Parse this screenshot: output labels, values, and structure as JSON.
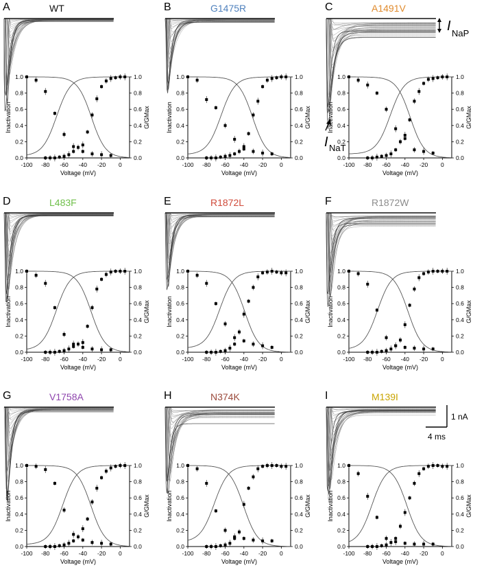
{
  "figure": {
    "scale_bar": {
      "current": "1 nA",
      "time": "4 ms"
    },
    "annotations": {
      "inap_symbol": "I",
      "inap_sub": "NaP",
      "inat_symbol": "I",
      "inat_sub": "NaT"
    }
  },
  "chart_data": [
    {
      "type": "line",
      "panel_letter": "A",
      "variant": "WT",
      "variant_color": "#111111",
      "xlabel": "Voltage (mV)",
      "ylabel_left": "Inactivation",
      "ylabel_right": "G/GMax",
      "xlim": [
        -100,
        10
      ],
      "ylim": [
        0,
        1
      ],
      "xticks": [
        "-100",
        "-80",
        "-60",
        "-40",
        "-20",
        "0"
      ],
      "yticks": [
        "0.0",
        "0.2",
        "0.4",
        "0.6",
        "0.8",
        "1.0"
      ],
      "inactivation": {
        "x": [
          -100,
          -90,
          -80,
          -70,
          -60,
          -50,
          -40,
          -30,
          -20,
          -10
        ],
        "y": [
          1.0,
          0.96,
          0.82,
          0.55,
          0.29,
          0.14,
          0.08,
          0.05,
          0.04,
          0.03
        ]
      },
      "activation": {
        "x": [
          -80,
          -75,
          -70,
          -65,
          -60,
          -55,
          -50,
          -45,
          -40,
          -35,
          -30,
          -25,
          -20,
          -15,
          -10,
          -5,
          0,
          5
        ],
        "y": [
          0.0,
          0.0,
          0.0,
          0.01,
          0.02,
          0.04,
          0.08,
          0.13,
          0.16,
          0.32,
          0.53,
          0.73,
          0.88,
          0.95,
          0.98,
          0.99,
          1.0,
          1.0
        ]
      },
      "traces": {
        "count": 28,
        "peak": 1.0,
        "persistent": 0.02
      }
    },
    {
      "type": "line",
      "panel_letter": "B",
      "variant": "G1475R",
      "variant_color": "#4f81bd",
      "xlabel": "Voltage (mV)",
      "ylabel_left": "Inactivation",
      "ylabel_right": "G/GMax",
      "xlim": [
        -100,
        10
      ],
      "ylim": [
        0,
        1
      ],
      "xticks": [
        "-100",
        "-80",
        "-60",
        "-40",
        "-20",
        "0"
      ],
      "yticks": [
        "0.0",
        "0.2",
        "0.4",
        "0.6",
        "0.8",
        "1.0"
      ],
      "inactivation": {
        "x": [
          -100,
          -90,
          -80,
          -70,
          -60,
          -50,
          -40,
          -30,
          -20,
          -10
        ],
        "y": [
          1.0,
          0.96,
          0.72,
          0.62,
          0.4,
          0.23,
          0.11,
          0.08,
          0.06,
          0.05
        ]
      },
      "activation": {
        "x": [
          -80,
          -75,
          -70,
          -65,
          -60,
          -55,
          -50,
          -45,
          -40,
          -35,
          -30,
          -25,
          -20,
          -15,
          -10,
          -5,
          0,
          5
        ],
        "y": [
          0.0,
          0.0,
          0.0,
          0.01,
          0.02,
          0.03,
          0.05,
          0.08,
          0.14,
          0.3,
          0.53,
          0.7,
          0.88,
          0.96,
          0.98,
          0.99,
          1.0,
          1.0
        ]
      },
      "traces": {
        "count": 28,
        "peak": 0.8,
        "persistent": 0.03
      }
    },
    {
      "type": "line",
      "panel_letter": "C",
      "variant": "A1491V",
      "variant_color": "#e08a2c",
      "xlabel": "Voltage (mV)",
      "ylabel_left": "Inactivation",
      "ylabel_right": "G/GMax",
      "xlim": [
        -100,
        10
      ],
      "ylim": [
        0,
        1
      ],
      "xticks": [
        "-100",
        "-80",
        "-60",
        "-40",
        "-20",
        "0"
      ],
      "yticks": [
        "0.0",
        "0.2",
        "0.4",
        "0.6",
        "0.8",
        "1.0"
      ],
      "inactivation": {
        "x": [
          -100,
          -90,
          -80,
          -70,
          -60,
          -50,
          -40,
          -30,
          -20,
          -10
        ],
        "y": [
          1.0,
          0.96,
          0.9,
          0.8,
          0.6,
          0.36,
          0.24,
          0.1,
          0.08,
          0.06
        ]
      },
      "activation": {
        "x": [
          -80,
          -75,
          -70,
          -65,
          -60,
          -55,
          -50,
          -45,
          -40,
          -35,
          -30,
          -25,
          -20,
          -15,
          -10,
          -5,
          0,
          5
        ],
        "y": [
          0.0,
          0.0,
          0.01,
          0.02,
          0.03,
          0.05,
          0.1,
          0.2,
          0.28,
          0.47,
          0.7,
          0.82,
          0.92,
          0.97,
          0.98,
          0.99,
          1.0,
          1.0
        ]
      },
      "traces": {
        "count": 30,
        "peak": 1.0,
        "persistent": 0.15
      }
    },
    {
      "type": "line",
      "panel_letter": "D",
      "variant": "L483F",
      "variant_color": "#6fbf4a",
      "xlabel": "Voltage (mV)",
      "ylabel_left": "Inactivation",
      "ylabel_right": "G/GMax",
      "xlim": [
        -100,
        10
      ],
      "ylim": [
        0,
        1
      ],
      "xticks": [
        "-100",
        "-80",
        "-60",
        "-40",
        "-20",
        "0"
      ],
      "yticks": [
        "0.0",
        "0.2",
        "0.4",
        "0.6",
        "0.8",
        "1.0"
      ],
      "inactivation": {
        "x": [
          -100,
          -90,
          -80,
          -70,
          -60,
          -50,
          -40,
          -30,
          -20,
          -10
        ],
        "y": [
          1.0,
          0.95,
          0.85,
          0.55,
          0.22,
          0.1,
          0.06,
          0.04,
          0.03,
          0.03
        ]
      },
      "activation": {
        "x": [
          -80,
          -75,
          -70,
          -65,
          -60,
          -55,
          -50,
          -45,
          -40,
          -35,
          -30,
          -25,
          -20,
          -15,
          -10,
          -5,
          0,
          5
        ],
        "y": [
          0.0,
          0.0,
          0.0,
          0.01,
          0.02,
          0.04,
          0.07,
          0.1,
          0.12,
          0.32,
          0.55,
          0.78,
          0.9,
          0.96,
          0.99,
          1.0,
          1.0,
          1.0
        ]
      },
      "traces": {
        "count": 28,
        "peak": 1.0,
        "persistent": 0.02
      }
    },
    {
      "type": "line",
      "panel_letter": "E",
      "variant": "R1872L",
      "variant_color": "#d04a3a",
      "xlabel": "Voltage (mV)",
      "ylabel_left": "Inactivation",
      "ylabel_right": "G/GMax",
      "xlim": [
        -100,
        10
      ],
      "ylim": [
        0,
        1
      ],
      "xticks": [
        "-100",
        "-80",
        "-60",
        "-40",
        "-20",
        "0"
      ],
      "yticks": [
        "0.0",
        "0.2",
        "0.4",
        "0.6",
        "0.8",
        "1.0"
      ],
      "inactivation": {
        "x": [
          -100,
          -90,
          -80,
          -70,
          -60,
          -50,
          -40,
          -30,
          -20,
          -10
        ],
        "y": [
          1.0,
          0.95,
          0.85,
          0.6,
          0.35,
          0.18,
          0.14,
          0.1,
          0.08,
          0.06
        ]
      },
      "activation": {
        "x": [
          -80,
          -75,
          -70,
          -65,
          -60,
          -55,
          -50,
          -45,
          -40,
          -35,
          -30,
          -25,
          -20,
          -15,
          -10,
          -5,
          0,
          5
        ],
        "y": [
          0.0,
          0.0,
          0.0,
          0.01,
          0.02,
          0.05,
          0.1,
          0.25,
          0.47,
          0.63,
          0.8,
          0.93,
          0.98,
          0.99,
          1.0,
          0.99,
          0.98,
          0.98
        ]
      },
      "traces": {
        "count": 28,
        "peak": 0.85,
        "persistent": 0.03
      }
    },
    {
      "type": "line",
      "panel_letter": "F",
      "variant": "R1872W",
      "variant_color": "#8c8c8c",
      "xlabel": "Voltage (mV)",
      "ylabel_left": "Inactivation",
      "ylabel_right": "G/GMax",
      "xlim": [
        -100,
        10
      ],
      "ylim": [
        0,
        1
      ],
      "xticks": [
        "-100",
        "-80",
        "-60",
        "-40",
        "-20",
        "0"
      ],
      "yticks": [
        "0.0",
        "0.2",
        "0.4",
        "0.6",
        "0.8",
        "1.0"
      ],
      "inactivation": {
        "x": [
          -100,
          -90,
          -80,
          -70,
          -60,
          -50,
          -40,
          -30,
          -20,
          -10
        ],
        "y": [
          1.0,
          0.97,
          0.84,
          0.52,
          0.18,
          0.08,
          0.06,
          0.05,
          0.04,
          0.04
        ]
      },
      "activation": {
        "x": [
          -80,
          -75,
          -70,
          -65,
          -60,
          -55,
          -50,
          -45,
          -40,
          -35,
          -30,
          -25,
          -20,
          -15,
          -10,
          -5,
          0,
          5
        ],
        "y": [
          0.0,
          0.0,
          0.0,
          0.01,
          0.02,
          0.04,
          0.08,
          0.15,
          0.34,
          0.58,
          0.78,
          0.92,
          0.97,
          0.99,
          1.0,
          1.0,
          1.0,
          1.0
        ]
      },
      "traces": {
        "count": 30,
        "peak": 1.0,
        "persistent": 0.1
      }
    },
    {
      "type": "line",
      "panel_letter": "G",
      "variant": "V1758A",
      "variant_color": "#8e44ad",
      "xlabel": "Voltage (mV)",
      "ylabel_left": "Inactivation",
      "ylabel_right": "G/GMax",
      "xlim": [
        -100,
        10
      ],
      "ylim": [
        0,
        1
      ],
      "xticks": [
        "-100",
        "-80",
        "-60",
        "-40",
        "-20",
        "0"
      ],
      "yticks": [
        "0.0",
        "0.2",
        "0.4",
        "0.6",
        "0.8",
        "1.0"
      ],
      "inactivation": {
        "x": [
          -100,
          -90,
          -80,
          -70,
          -60,
          -50,
          -40,
          -30,
          -20,
          -10
        ],
        "y": [
          1.0,
          0.99,
          0.95,
          0.78,
          0.45,
          0.15,
          0.08,
          0.05,
          0.04,
          0.03
        ]
      },
      "activation": {
        "x": [
          -80,
          -75,
          -70,
          -65,
          -60,
          -55,
          -50,
          -45,
          -40,
          -35,
          -30,
          -25,
          -20,
          -15,
          -10,
          -5,
          0,
          5
        ],
        "y": [
          0.0,
          0.0,
          0.0,
          0.01,
          0.02,
          0.04,
          0.07,
          0.12,
          0.22,
          0.34,
          0.55,
          0.72,
          0.85,
          0.93,
          0.97,
          0.99,
          1.0,
          1.0
        ]
      },
      "traces": {
        "count": 28,
        "peak": 1.0,
        "persistent": 0.03
      }
    },
    {
      "type": "line",
      "panel_letter": "H",
      "variant": "N374K",
      "variant_color": "#9b4a3c",
      "xlabel": "Voltage (mV)",
      "ylabel_left": "Inactivation",
      "ylabel_right": "G/GMax",
      "xlim": [
        -100,
        10
      ],
      "ylim": [
        0,
        1
      ],
      "xticks": [
        "-100",
        "-80",
        "-60",
        "-40",
        "-20",
        "0"
      ],
      "yticks": [
        "0.0",
        "0.2",
        "0.4",
        "0.6",
        "0.8",
        "1.0"
      ],
      "inactivation": {
        "x": [
          -100,
          -90,
          -80,
          -70,
          -60,
          -50,
          -40,
          -30,
          -20,
          -10
        ],
        "y": [
          1.0,
          0.96,
          0.78,
          0.44,
          0.2,
          0.12,
          0.1,
          0.08,
          0.07,
          0.07
        ]
      },
      "activation": {
        "x": [
          -80,
          -75,
          -70,
          -65,
          -60,
          -55,
          -50,
          -45,
          -40,
          -35,
          -30,
          -25,
          -20,
          -15,
          -10,
          -5,
          0,
          5
        ],
        "y": [
          0.0,
          0.0,
          0.0,
          0.01,
          0.02,
          0.04,
          0.1,
          0.18,
          0.52,
          0.72,
          0.86,
          0.96,
          0.99,
          1.0,
          1.0,
          1.0,
          0.99,
          0.99
        ]
      },
      "traces": {
        "count": 28,
        "peak": 0.9,
        "persistent": 0.12
      }
    },
    {
      "type": "line",
      "panel_letter": "I",
      "variant": "M139I",
      "variant_color": "#c9a400",
      "xlabel": "Voltage (mV)",
      "ylabel_left": "Inactivation",
      "ylabel_right": "G/GMax",
      "xlim": [
        -100,
        10
      ],
      "ylim": [
        0,
        1
      ],
      "xticks": [
        "-100",
        "-80",
        "-60",
        "-40",
        "-20",
        "0"
      ],
      "yticks": [
        "0.0",
        "0.2",
        "0.4",
        "0.6",
        "0.8",
        "1.0"
      ],
      "inactivation": {
        "x": [
          -100,
          -90,
          -80,
          -70,
          -60,
          -50,
          -40,
          -30,
          -20,
          -10
        ],
        "y": [
          1.0,
          0.9,
          0.62,
          0.36,
          0.1,
          0.06,
          0.04,
          0.03,
          0.03,
          0.03
        ]
      },
      "activation": {
        "x": [
          -80,
          -75,
          -70,
          -65,
          -60,
          -55,
          -50,
          -45,
          -40,
          -35,
          -30,
          -25,
          -20,
          -15,
          -10,
          -5,
          0,
          5
        ],
        "y": [
          0.0,
          0.0,
          0.0,
          0.01,
          0.02,
          0.05,
          0.1,
          0.25,
          0.42,
          0.6,
          0.78,
          0.9,
          0.96,
          0.99,
          1.0,
          1.0,
          0.99,
          0.99
        ]
      },
      "traces": {
        "count": 28,
        "peak": 1.0,
        "persistent": 0.06
      }
    }
  ]
}
